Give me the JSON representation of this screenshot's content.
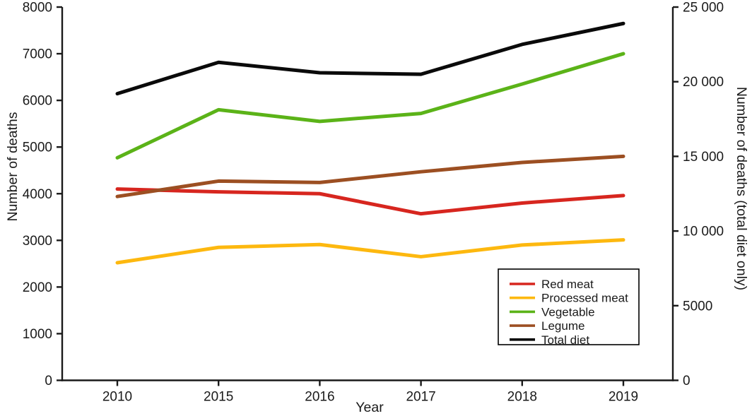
{
  "chart_data": {
    "type": "line",
    "title": "",
    "xlabel": "Year",
    "ylabel_left": "Number of deaths",
    "ylabel_right": "Number of deaths (total diet only)",
    "categories": [
      "2010",
      "2015",
      "2016",
      "2017",
      "2018",
      "2019"
    ],
    "x_spacing": "categorical-equal",
    "grid": false,
    "left_axis": {
      "min": 0,
      "max": 8000,
      "tick_labels": [
        "0",
        "1000",
        "2000",
        "3000",
        "4000",
        "5000",
        "6000",
        "7000",
        "8000"
      ]
    },
    "right_axis": {
      "min": 0,
      "max": 25000,
      "tick_labels": [
        "0",
        "5000",
        "10 000",
        "15 000",
        "20 000",
        "25 000"
      ]
    },
    "series": [
      {
        "name": "Red meat",
        "axis": "left",
        "color": "#d7261f",
        "values": [
          4100,
          4040,
          4000,
          3570,
          3800,
          3960
        ]
      },
      {
        "name": "Processed meat",
        "axis": "left",
        "color": "#fdb80f",
        "values": [
          2520,
          2850,
          2910,
          2650,
          2900,
          3010
        ]
      },
      {
        "name": "Vegetable",
        "axis": "left",
        "color": "#5bb318",
        "values": [
          4770,
          5800,
          5550,
          5720,
          6350,
          7000
        ]
      },
      {
        "name": "Legume",
        "axis": "left",
        "color": "#9c4f22",
        "values": [
          3940,
          4270,
          4240,
          4470,
          4670,
          4800
        ]
      },
      {
        "name": "Total diet",
        "axis": "right",
        "color": "#0a0a0a",
        "values": [
          19200,
          21300,
          20600,
          20500,
          22500,
          23900
        ]
      }
    ],
    "legend": {
      "position": "inside-lower-right",
      "items": [
        "Red meat",
        "Processed meat",
        "Vegetable",
        "Legume",
        "Total diet"
      ]
    },
    "axis_color": "#1a1a1a",
    "background_color": "#ffffff"
  }
}
